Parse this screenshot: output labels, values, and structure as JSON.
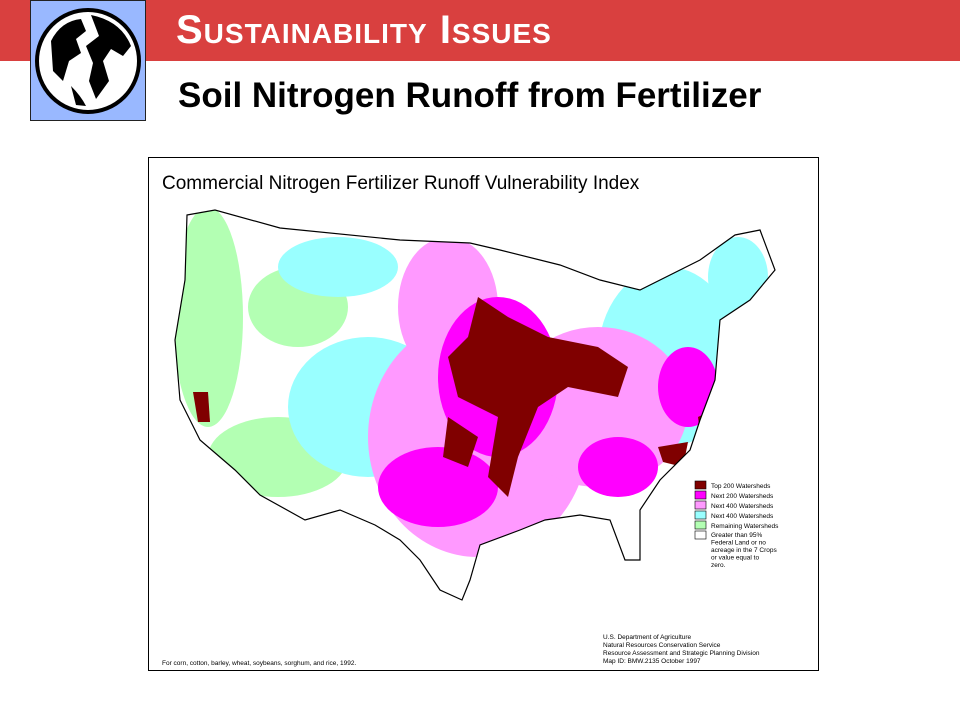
{
  "header": {
    "title": "Sustainability Issues",
    "subtitle": "Soil Nitrogen Runoff from Fertilizer"
  },
  "map": {
    "title": "Commercial Nitrogen Fertilizer Runoff Vulnerability Index",
    "legend": [
      {
        "label": "Top 200 Watersheds",
        "color": "#800000"
      },
      {
        "label": "Next 200 Watersheds",
        "color": "#ff00ff"
      },
      {
        "label": "Next 400 Watersheds",
        "color": "#ff99ff"
      },
      {
        "label": "Next 400 Watersheds",
        "color": "#99ffff"
      },
      {
        "label": "Remaining Watersheds",
        "color": "#b3ffb3"
      },
      {
        "label": "Greater than 95% Federal Land or no acreage in the 7 Crops or value equal to zero.",
        "color": "#ffffff"
      }
    ],
    "credits": [
      "U.S. Department of Agriculture",
      "Natural Resources Conservation Service",
      "Resource Assessment and Strategic Planning Division",
      "Map ID: BMW.2135    October 1997"
    ],
    "footnote": "For corn, cotton, barley, wheat, soybeans, sorghum, and rice, 1992."
  }
}
